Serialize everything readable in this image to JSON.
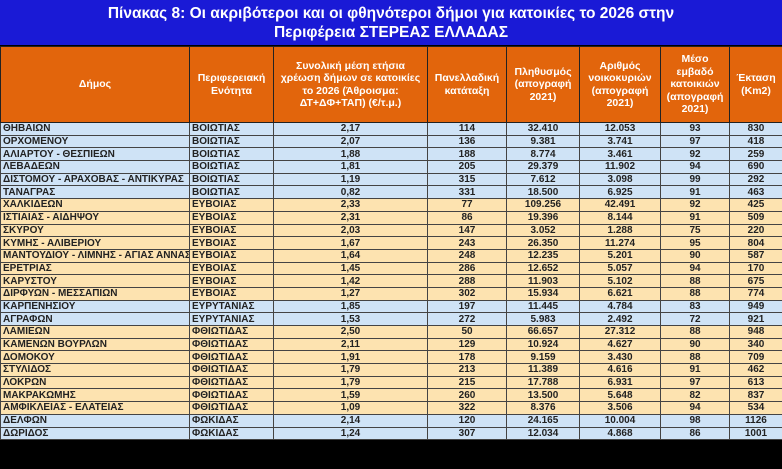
{
  "title": {
    "line1": "Πίνακας 8: Οι ακριβότεροι και οι φθηνότεροι δήμοι για κατοικίες το 2026 στην",
    "line2": "Περιφέρεια  ΣΤΕΡΕΑΣ ΕΛΛΑΔΑΣ"
  },
  "columns": [
    "Δήμος",
    "Περιφερειακή Ενότητα",
    "Συνολική μέση ετήσια χρέωση δήμων σε κατοικίες το 2026 (Άθροισμα: ΔΤ+ΔΦ+ΤΑΠ) (€/τ.μ.)",
    "Πανελλαδική κατάταξη",
    "Πληθυσμός (απογραφή 2021)",
    "Αριθμός νοικοκυριών (απογραφή 2021)",
    "Μέσο εμβαδό κατοικιών (απογραφή 2021)",
    "Έκταση (Km2)"
  ],
  "colors": {
    "title_bg": "#1a1ad6",
    "header_bg": "#e2650c",
    "row_blue": "#cfe3f6",
    "row_yellow": "#fde3b0"
  },
  "rows": [
    [
      "ΘΗΒΑΙΩΝ",
      "ΒΟΙΩΤΙΑΣ",
      "2,17",
      "114",
      "32.410",
      "12.053",
      "93",
      "830",
      "blue"
    ],
    [
      "ΟΡΧΟΜΕΝΟΥ",
      "ΒΟΙΩΤΙΑΣ",
      "2,07",
      "136",
      "9.381",
      "3.741",
      "97",
      "418",
      "blue"
    ],
    [
      "ΑΛΙΑΡΤΟΥ - ΘΕΣΠΙΕΩΝ",
      "ΒΟΙΩΤΙΑΣ",
      "1,88",
      "188",
      "8.774",
      "3.461",
      "92",
      "259",
      "blue"
    ],
    [
      "ΛΕΒΑΔΕΩΝ",
      "ΒΟΙΩΤΙΑΣ",
      "1,81",
      "205",
      "29.379",
      "11.902",
      "94",
      "690",
      "blue"
    ],
    [
      "ΔΙΣΤΟΜΟΥ - ΑΡΑΧΟΒΑΣ - ΑΝΤΙΚΥΡΑΣ",
      "ΒΟΙΩΤΙΑΣ",
      "1,19",
      "315",
      "7.612",
      "3.098",
      "99",
      "292",
      "blue"
    ],
    [
      "ΤΑΝΑΓΡΑΣ",
      "ΒΟΙΩΤΙΑΣ",
      "0,82",
      "331",
      "18.500",
      "6.925",
      "91",
      "463",
      "blue"
    ],
    [
      "ΧΑΛΚΙΔΕΩΝ",
      "ΕΥΒΟΙΑΣ",
      "2,33",
      "77",
      "109.256",
      "42.491",
      "92",
      "425",
      "yellow"
    ],
    [
      "ΙΣΤΙΑΙΑΣ - ΑΙΔΗΨΟΥ",
      "ΕΥΒΟΙΑΣ",
      "2,31",
      "86",
      "19.396",
      "8.144",
      "91",
      "509",
      "yellow"
    ],
    [
      "ΣΚΥΡΟΥ",
      "ΕΥΒΟΙΑΣ",
      "2,03",
      "147",
      "3.052",
      "1.288",
      "75",
      "220",
      "yellow"
    ],
    [
      "ΚΥΜΗΣ - ΑΛΙΒΕΡΙΟΥ",
      "ΕΥΒΟΙΑΣ",
      "1,67",
      "243",
      "26.350",
      "11.274",
      "95",
      "804",
      "yellow"
    ],
    [
      "ΜΑΝΤΟΥΔΙΟΥ - ΛΙΜΝΗΣ - ΑΓΙΑΣ ΑΝΝΑΣ",
      "ΕΥΒΟΙΑΣ",
      "1,64",
      "248",
      "12.235",
      "5.201",
      "90",
      "587",
      "yellow"
    ],
    [
      "ΕΡΕΤΡΙΑΣ",
      "ΕΥΒΟΙΑΣ",
      "1,45",
      "286",
      "12.652",
      "5.057",
      "94",
      "170",
      "yellow"
    ],
    [
      "ΚΑΡΥΣΤΟΥ",
      "ΕΥΒΟΙΑΣ",
      "1,42",
      "288",
      "11.903",
      "5.102",
      "88",
      "675",
      "yellow"
    ],
    [
      "ΔΙΡΦΥΩΝ - ΜΕΣΣΑΠΙΩΝ",
      "ΕΥΒΟΙΑΣ",
      "1,27",
      "302",
      "15.934",
      "6.621",
      "88",
      "774",
      "yellow"
    ],
    [
      "ΚΑΡΠΕΝΗΣΙΟΥ",
      "ΕΥΡΥΤΑΝΙΑΣ",
      "1,85",
      "197",
      "11.445",
      "4.784",
      "83",
      "949",
      "blue"
    ],
    [
      "ΑΓΡΑΦΩΝ",
      "ΕΥΡΥΤΑΝΙΑΣ",
      "1,53",
      "272",
      "5.983",
      "2.492",
      "72",
      "921",
      "blue"
    ],
    [
      "ΛΑΜΙΕΩΝ",
      "ΦΘΙΩΤΙΔΑΣ",
      "2,50",
      "50",
      "66.657",
      "27.312",
      "88",
      "948",
      "yellow"
    ],
    [
      "ΚΑΜΕΝΩΝ ΒΟΥΡΛΩΝ",
      "ΦΘΙΩΤΙΔΑΣ",
      "2,11",
      "129",
      "10.924",
      "4.627",
      "90",
      "340",
      "yellow"
    ],
    [
      "ΔΟΜΟΚΟΥ",
      "ΦΘΙΩΤΙΔΑΣ",
      "1,91",
      "178",
      "9.159",
      "3.430",
      "88",
      "709",
      "yellow"
    ],
    [
      "ΣΤΥΛΙΔΟΣ",
      "ΦΘΙΩΤΙΔΑΣ",
      "1,79",
      "213",
      "11.389",
      "4.616",
      "91",
      "462",
      "yellow"
    ],
    [
      "ΛΟΚΡΩΝ",
      "ΦΘΙΩΤΙΔΑΣ",
      "1,79",
      "215",
      "17.788",
      "6.931",
      "97",
      "613",
      "yellow"
    ],
    [
      "ΜΑΚΡΑΚΩΜΗΣ",
      "ΦΘΙΩΤΙΔΑΣ",
      "1,59",
      "260",
      "13.500",
      "5.648",
      "82",
      "837",
      "yellow"
    ],
    [
      "ΑΜΦΙΚΛΕΙΑΣ - ΕΛΑΤΕΙΑΣ",
      "ΦΘΙΩΤΙΔΑΣ",
      "1,09",
      "322",
      "8.376",
      "3.506",
      "94",
      "534",
      "yellow"
    ],
    [
      "ΔΕΛΦΩΝ",
      "ΦΩΚΙΔΑΣ",
      "2,14",
      "120",
      "24.165",
      "10.004",
      "98",
      "1126",
      "blue"
    ],
    [
      "ΔΩΡΙΔΟΣ",
      "ΦΩΚΙΔΑΣ",
      "1,24",
      "307",
      "12.034",
      "4.868",
      "86",
      "1001",
      "blue"
    ]
  ]
}
